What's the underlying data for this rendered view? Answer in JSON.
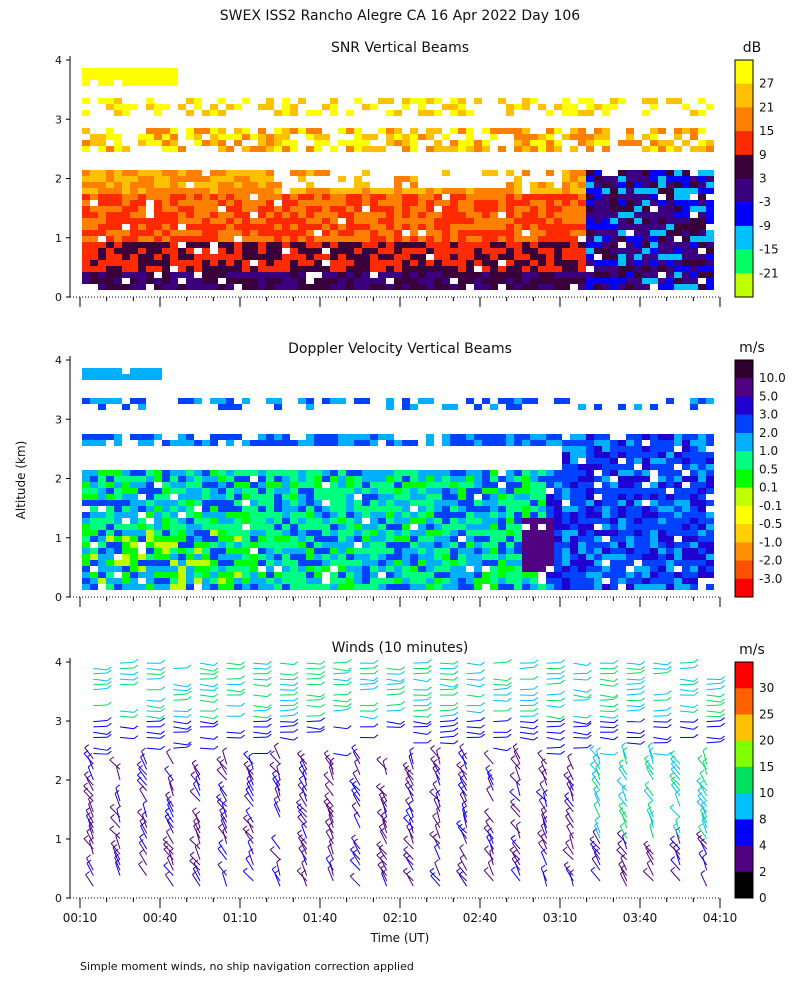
{
  "title": "SWEX ISS2 Rancho Alegre CA  16 Apr 2022 Day 106",
  "footnote": "Simple moment winds, no ship navigation correction applied",
  "y_axis_title": "Altitude (km)",
  "x_axis_title": "Time (UT)",
  "chart_data": [
    {
      "type": "heatmap",
      "title": "SNR Vertical Beams",
      "xlabel": "",
      "ylabel": "Altitude (km)",
      "xlim_minutes_ut": [
        10,
        250
      ],
      "ylim_km": [
        0,
        4
      ],
      "y_ticks": [
        "0",
        "1",
        "2",
        "3",
        "4"
      ],
      "colorbar": {
        "unit": "dB",
        "tick_labels": [
          "27",
          "21",
          "15",
          "9",
          "3",
          "-3",
          "-9",
          "-15",
          "-21"
        ],
        "colors": [
          "#ffff00",
          "#ffc000",
          "#ff8000",
          "#ff2a00",
          "#3a003a",
          "#3a0080",
          "#0000ff",
          "#00c0ff",
          "#00ff60",
          "#c0ff00"
        ]
      }
    },
    {
      "type": "heatmap",
      "title": "Doppler Velocity Vertical Beams",
      "xlabel": "",
      "ylabel": "Altitude (km)",
      "xlim_minutes_ut": [
        10,
        250
      ],
      "ylim_km": [
        0,
        4
      ],
      "y_ticks": [
        "0",
        "1",
        "2",
        "3",
        "4"
      ],
      "colorbar": {
        "unit": "m/s",
        "tick_labels": [
          "10.0",
          "5.0",
          "3.0",
          "2.0",
          "1.0",
          "0.5",
          "0.1",
          "-0.1",
          "-0.5",
          "-1.0",
          "-2.0",
          "-3.0"
        ],
        "colors": [
          "#300030",
          "#500080",
          "#2000d0",
          "#0040ff",
          "#00b0ff",
          "#00ff80",
          "#00ff00",
          "#c0ff00",
          "#ffff00",
          "#ffd000",
          "#ff9000",
          "#ff5000",
          "#ff0000"
        ]
      }
    },
    {
      "type": "wind_barbs",
      "title": "Winds (10 minutes)",
      "xlabel": "Time (UT)",
      "ylabel": "Altitude (km)",
      "xlim_minutes_ut": [
        10,
        250
      ],
      "ylim_km": [
        0,
        4
      ],
      "y_ticks": [
        "0",
        "1",
        "2",
        "3",
        "4"
      ],
      "x_ticks": [
        "00:10",
        "00:40",
        "01:10",
        "01:40",
        "02:10",
        "02:40",
        "03:10",
        "03:40",
        "04:10"
      ],
      "colorbar": {
        "unit": "m/s",
        "tick_labels": [
          "30",
          "25",
          "20",
          "15",
          "10",
          "8",
          "4",
          "2",
          "0"
        ],
        "colors": [
          "#ff0000",
          "#ff6000",
          "#ffc000",
          "#80ff00",
          "#00e060",
          "#00c0ff",
          "#0000ff",
          "#500080",
          "#000000"
        ]
      }
    }
  ]
}
